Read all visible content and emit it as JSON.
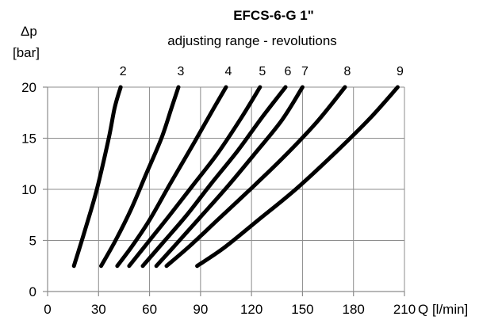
{
  "chart_data": {
    "type": "line",
    "title": "EFCS-6-G 1\"",
    "subtitle": "adjusting range - revolutions",
    "ylabel_line1": "Δp",
    "ylabel_line2": "[bar]",
    "xlabel": "Q [l/min]",
    "xlim": [
      0,
      210
    ],
    "ylim": [
      0,
      20
    ],
    "x_ticks": [
      0,
      30,
      60,
      90,
      120,
      150,
      180,
      210
    ],
    "y_ticks": [
      0,
      5,
      10,
      15,
      20
    ],
    "grid": true,
    "series": [
      {
        "name": "2",
        "points": [
          [
            15.5,
            2.5
          ],
          [
            22,
            6
          ],
          [
            29,
            10
          ],
          [
            36,
            15
          ],
          [
            39.5,
            18
          ],
          [
            43,
            20
          ]
        ]
      },
      {
        "name": "3",
        "points": [
          [
            31.5,
            2.5
          ],
          [
            40,
            5
          ],
          [
            49,
            8
          ],
          [
            58,
            11.5
          ],
          [
            67,
            15
          ],
          [
            73,
            18
          ],
          [
            77,
            20
          ]
        ]
      },
      {
        "name": "4",
        "points": [
          [
            41,
            2.5
          ],
          [
            50,
            4.5
          ],
          [
            60,
            7
          ],
          [
            72,
            10.5
          ],
          [
            86,
            14.5
          ],
          [
            98,
            18
          ],
          [
            105,
            20
          ]
        ]
      },
      {
        "name": "5",
        "points": [
          [
            48,
            2.5
          ],
          [
            60,
            5
          ],
          [
            72,
            7.5
          ],
          [
            86,
            10.5
          ],
          [
            100,
            13.5
          ],
          [
            114,
            17
          ],
          [
            125,
            20
          ]
        ]
      },
      {
        "name": "6",
        "points": [
          [
            56,
            2.5
          ],
          [
            68,
            4.8
          ],
          [
            82,
            7.5
          ],
          [
            96,
            10.5
          ],
          [
            112,
            13.8
          ],
          [
            126,
            17
          ],
          [
            140,
            20
          ]
        ]
      },
      {
        "name": "7",
        "points": [
          [
            64,
            2.5
          ],
          [
            76,
            4.7
          ],
          [
            90,
            7.3
          ],
          [
            106,
            10.3
          ],
          [
            122,
            13.5
          ],
          [
            138,
            16.8
          ],
          [
            150,
            20
          ]
        ]
      },
      {
        "name": "8",
        "points": [
          [
            70,
            2.5
          ],
          [
            84,
            4.5
          ],
          [
            100,
            7
          ],
          [
            118,
            9.8
          ],
          [
            138,
            13
          ],
          [
            158,
            16.5
          ],
          [
            175,
            20
          ]
        ]
      },
      {
        "name": "9",
        "points": [
          [
            88,
            2.5
          ],
          [
            104,
            4.3
          ],
          [
            124,
            7
          ],
          [
            146,
            10
          ],
          [
            170,
            13.7
          ],
          [
            190,
            17
          ],
          [
            206,
            20
          ]
        ]
      }
    ]
  }
}
